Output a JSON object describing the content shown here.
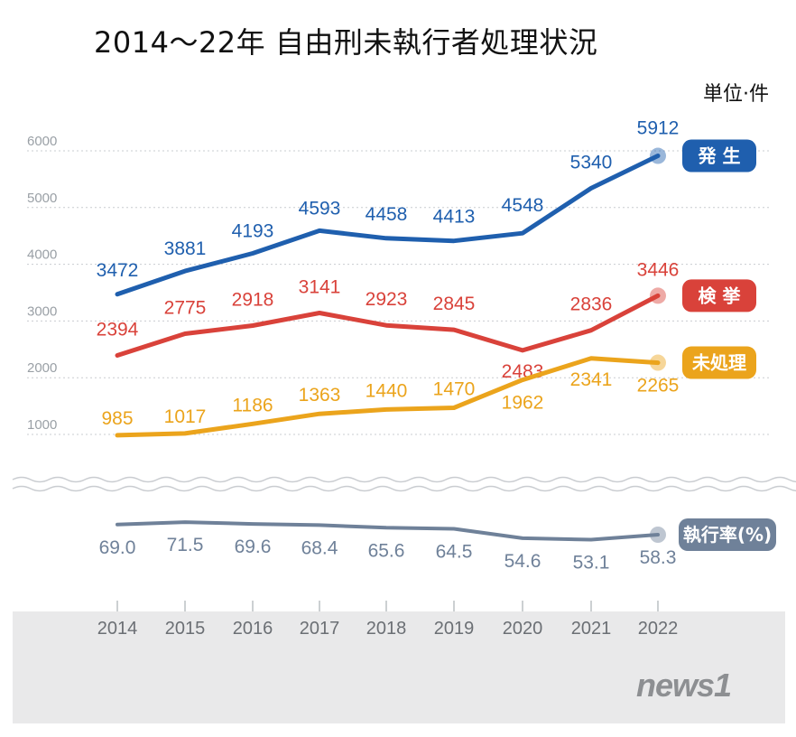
{
  "title": "2014～22年 自由刑未執行者処理状況",
  "unit_label": "単位·件",
  "logo_text": "news1",
  "chart_data": {
    "type": "line",
    "categories": [
      "2014",
      "2015",
      "2016",
      "2017",
      "2018",
      "2019",
      "2020",
      "2021",
      "2022"
    ],
    "yticks": [
      "6000",
      "5000",
      "4000",
      "3000",
      "2000",
      "1000"
    ],
    "ylim": [
      1000,
      6000
    ],
    "grid": true,
    "series": [
      {
        "name": "発 生",
        "color": "#1f5fae",
        "values": [
          3472,
          3881,
          4193,
          4593,
          4458,
          4413,
          4548,
          5340,
          5912
        ]
      },
      {
        "name": "検 挙",
        "color": "#d9423a",
        "values": [
          2394,
          2775,
          2918,
          3141,
          2923,
          2845,
          2483,
          2836,
          3446
        ]
      },
      {
        "name": "未処理",
        "color": "#eba41c",
        "values": [
          985,
          1017,
          1186,
          1363,
          1440,
          1470,
          1962,
          2341,
          2265
        ]
      }
    ],
    "rate_series": {
      "name": "執行率(%)",
      "color": "#6f8199",
      "values": [
        69.0,
        71.5,
        69.6,
        68.4,
        65.6,
        64.5,
        54.6,
        53.1,
        58.3
      ]
    },
    "rate_labels": [
      "69.0",
      "71.5",
      "69.6",
      "68.4",
      "65.6",
      "64.5",
      "54.6",
      "53.1",
      "58.3"
    ]
  }
}
